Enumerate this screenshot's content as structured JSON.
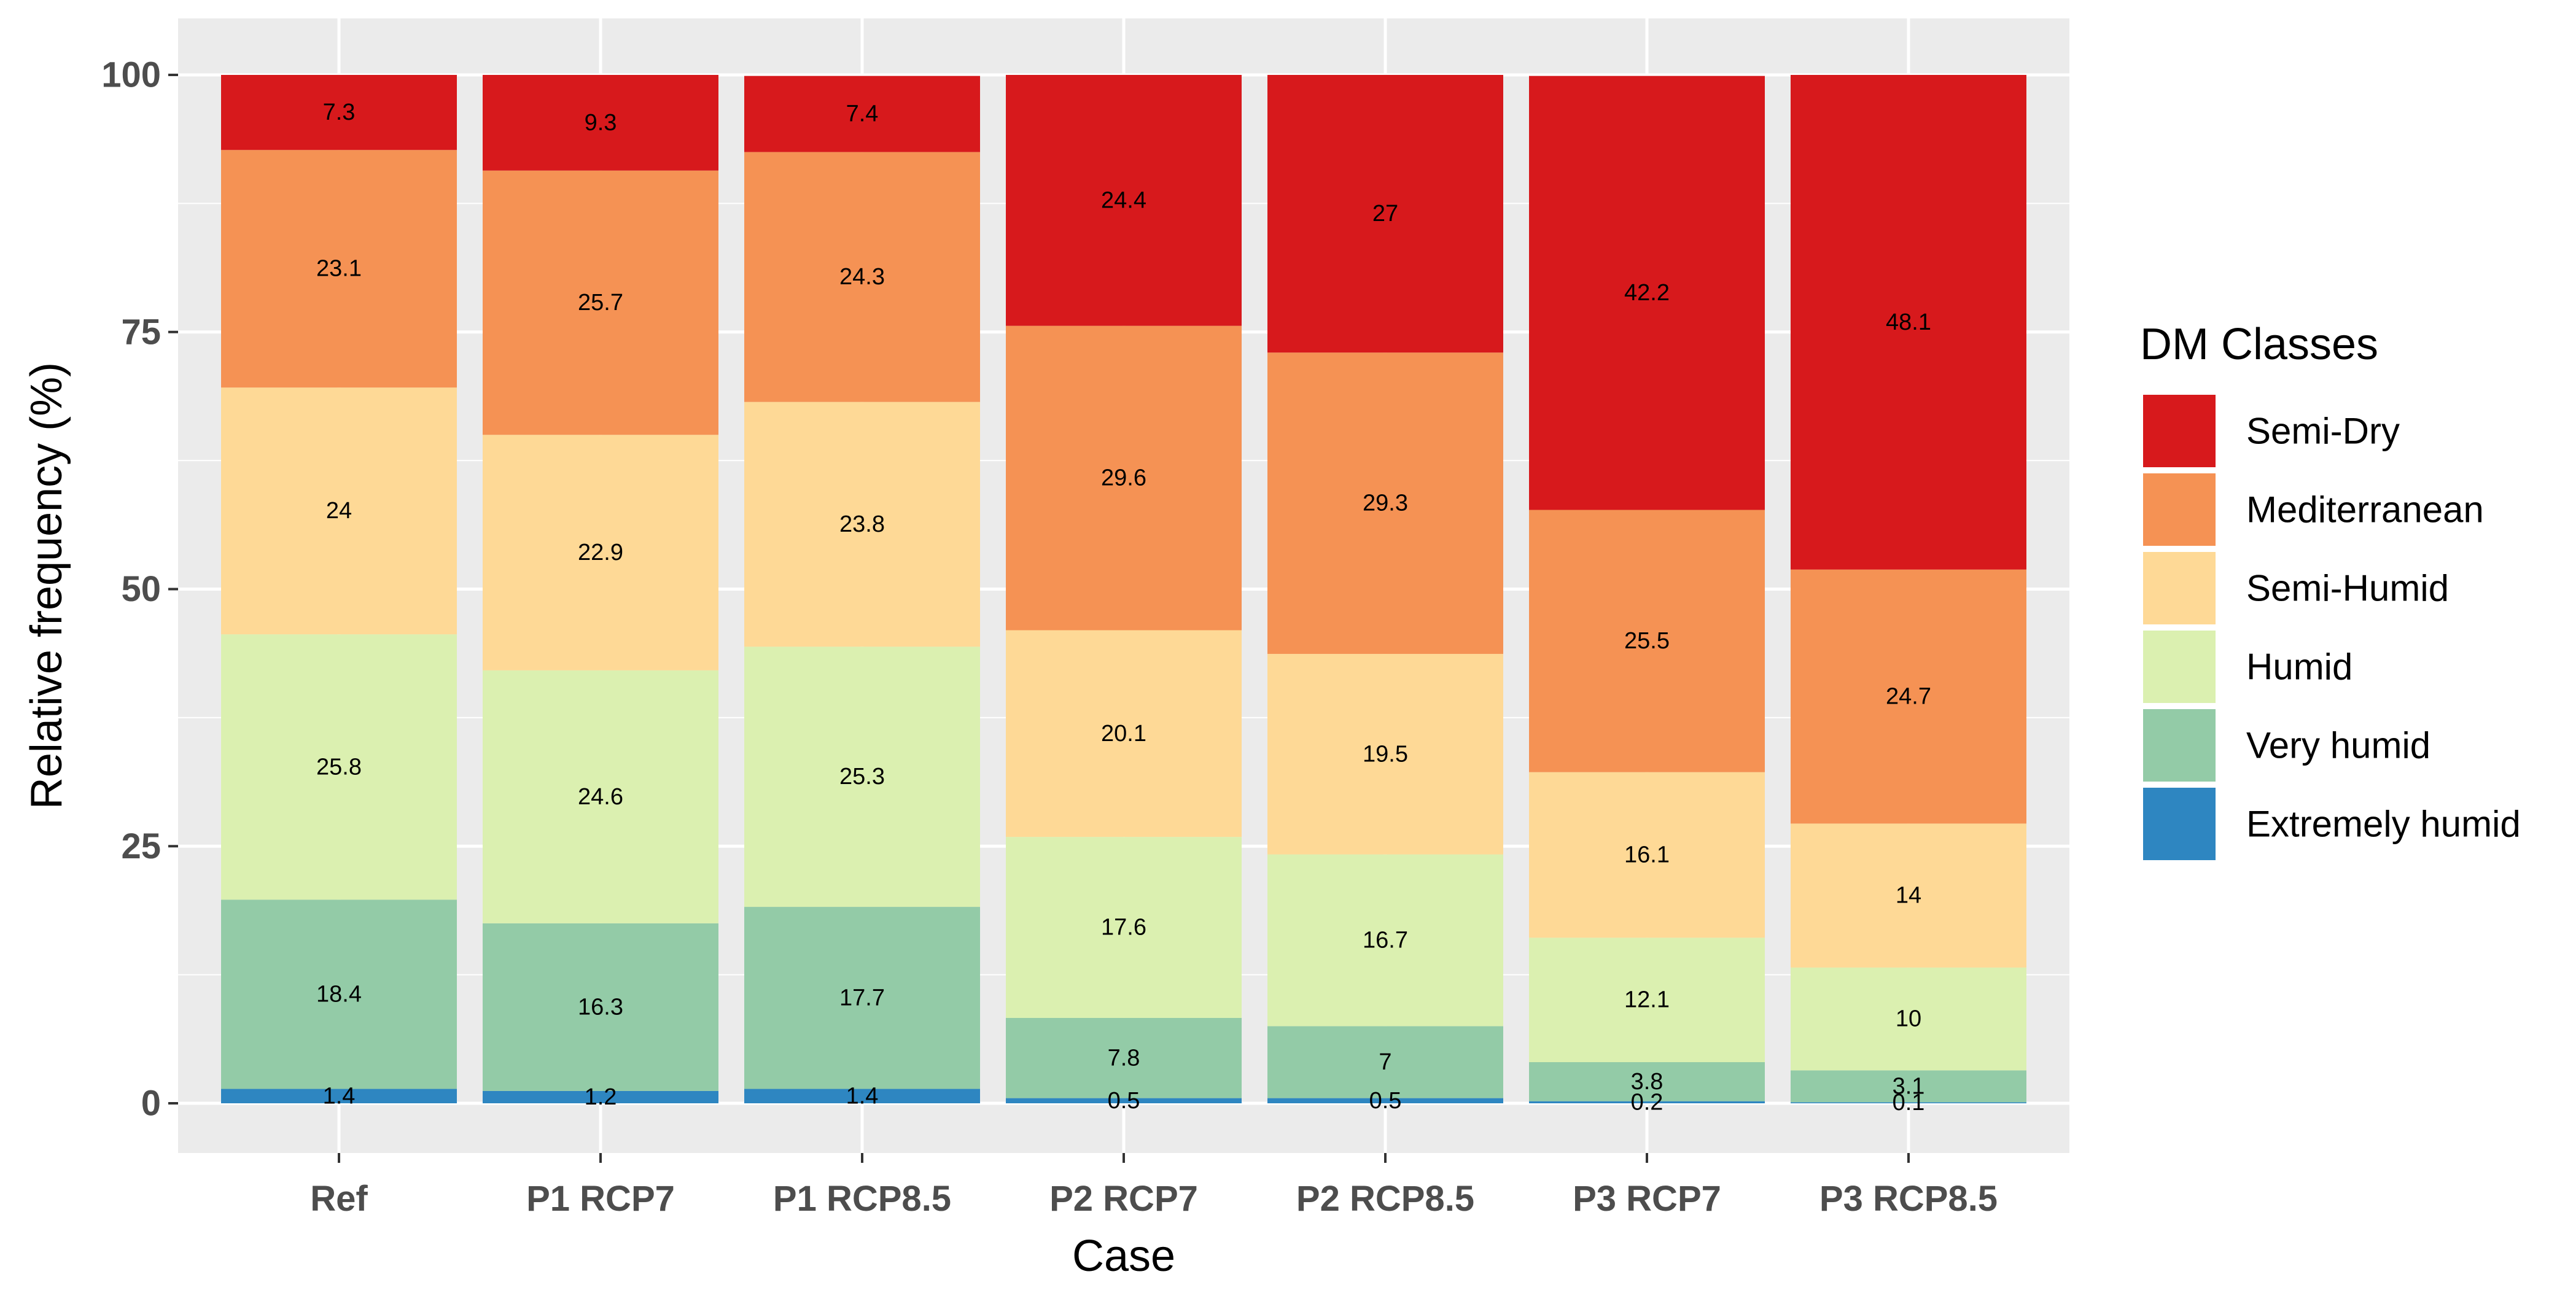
{
  "chart_data": {
    "type": "bar",
    "stacked": true,
    "title": "",
    "xlabel": "Case",
    "ylabel": "Relative frequency (%)",
    "ylim": [
      0,
      100
    ],
    "yticks": [
      "0",
      "25",
      "50",
      "75",
      "100"
    ],
    "ytick_values": [
      0,
      25,
      50,
      75,
      100
    ],
    "grid": true,
    "legend_position": "right",
    "legend_title": "DM Classes",
    "categories": [
      "Ref",
      "P1 RCP7",
      "P1 RCP8.5",
      "P2 RCP7",
      "P2 RCP8.5",
      "P3 RCP7",
      "P3 RCP8.5"
    ],
    "series": [
      {
        "name": "Extremely humid",
        "color": "#2e86c1",
        "values": [
          1.4,
          1.2,
          1.4,
          0.5,
          0.5,
          0.2,
          0.1
        ],
        "labels": [
          "1.4",
          "1.2",
          "1.4",
          "0.5",
          "0.5",
          "0.2",
          "0.1"
        ]
      },
      {
        "name": "Very humid",
        "color": "#93cba7",
        "values": [
          18.4,
          16.3,
          17.7,
          7.8,
          7,
          3.8,
          3.1
        ],
        "labels": [
          "18.4",
          "16.3",
          "17.7",
          "7.8",
          "7",
          "3.8",
          "3.1"
        ]
      },
      {
        "name": "Humid",
        "color": "#dbf0b0",
        "values": [
          25.8,
          24.6,
          25.3,
          17.6,
          16.7,
          12.1,
          10
        ],
        "labels": [
          "25.8",
          "24.6",
          "25.3",
          "17.6",
          "16.7",
          "12.1",
          "10"
        ]
      },
      {
        "name": "Semi-Humid",
        "color": "#fed996",
        "values": [
          24,
          22.9,
          23.8,
          20.1,
          19.5,
          16.1,
          14
        ],
        "labels": [
          "24",
          "22.9",
          "23.8",
          "20.1",
          "19.5",
          "16.1",
          "14"
        ]
      },
      {
        "name": "Mediterranean",
        "color": "#f59254",
        "values": [
          23.1,
          25.7,
          24.3,
          29.6,
          29.3,
          25.5,
          24.7
        ],
        "labels": [
          "23.1",
          "25.7",
          "24.3",
          "29.6",
          "29.3",
          "25.5",
          "24.7"
        ]
      },
      {
        "name": "Semi-Dry",
        "color": "#d7191c",
        "values": [
          7.3,
          9.3,
          7.4,
          24.4,
          27,
          42.2,
          48.1
        ],
        "labels": [
          "7.3",
          "9.3",
          "7.4",
          "24.4",
          "27",
          "42.2",
          "48.1"
        ]
      }
    ],
    "legend_order": [
      "Semi-Dry",
      "Mediterranean",
      "Semi-Humid",
      "Humid",
      "Very humid",
      "Extremely humid"
    ],
    "panel_background": "#ebebeb",
    "grid_color": "#ffffff"
  }
}
